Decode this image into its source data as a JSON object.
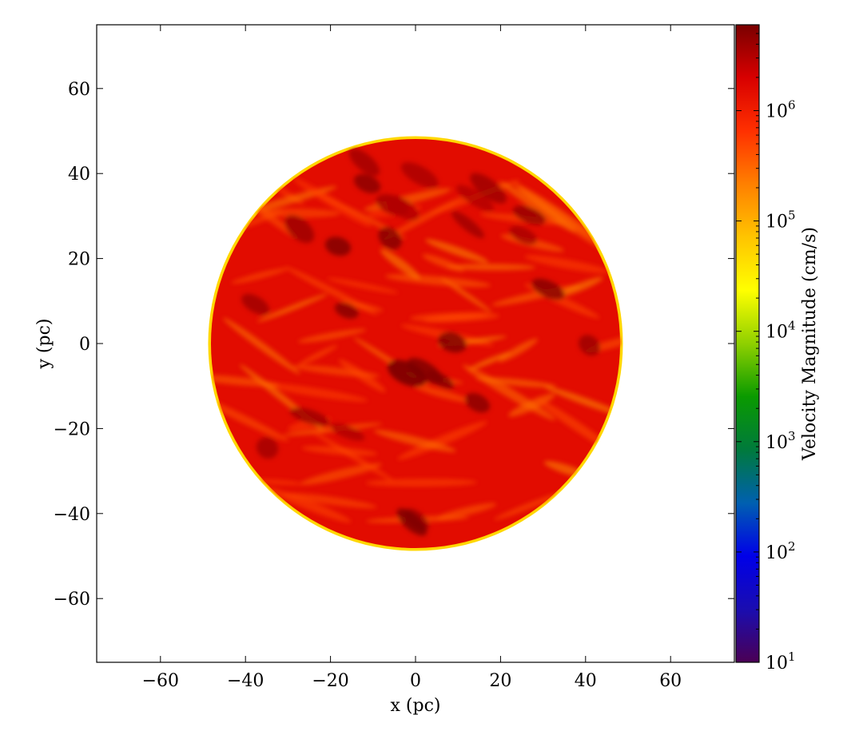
{
  "chart_data": {
    "type": "heatmap",
    "title": "",
    "xlabel": "x  (pc)",
    "ylabel": "y  (pc)",
    "xlim": [
      -75,
      75
    ],
    "ylim": [
      -75,
      75
    ],
    "x_ticks": [
      -60,
      -40,
      -20,
      0,
      20,
      40,
      60
    ],
    "y_ticks": [
      -60,
      -40,
      -20,
      0,
      20,
      40,
      60
    ],
    "x_tick_labels": [
      "−60",
      "−40",
      "−20",
      "0",
      "20",
      "40",
      "60"
    ],
    "y_tick_labels": [
      "−60",
      "−40",
      "−20",
      "0",
      "20",
      "40",
      "60"
    ],
    "field": {
      "shape": "disk",
      "center": [
        0,
        0
      ],
      "radius_pc": 48.5,
      "typical_value": 1500000,
      "peak_value": 6000000,
      "edge_min_value": 50000,
      "outside": "no data"
    },
    "colorbar": {
      "label": "Velocity Magnitude  (cm/s)",
      "scale": "log",
      "vmin": 10,
      "vmax": 6000000,
      "ticks": [
        10,
        100,
        1000,
        10000,
        100000,
        1000000
      ],
      "tick_bases": [
        "10",
        "10",
        "10",
        "10",
        "10",
        "10"
      ],
      "tick_exponents": [
        "1",
        "2",
        "3",
        "4",
        "5",
        "6"
      ],
      "colormap": "spectral-like",
      "colormap_stops": [
        "#4b0055",
        "#1a0db0",
        "#0000e8",
        "#0060b0",
        "#007a3c",
        "#0a9a00",
        "#8fd000",
        "#ffff00",
        "#ffc400",
        "#ff8000",
        "#ff3000",
        "#d80000",
        "#7a0000"
      ]
    }
  }
}
